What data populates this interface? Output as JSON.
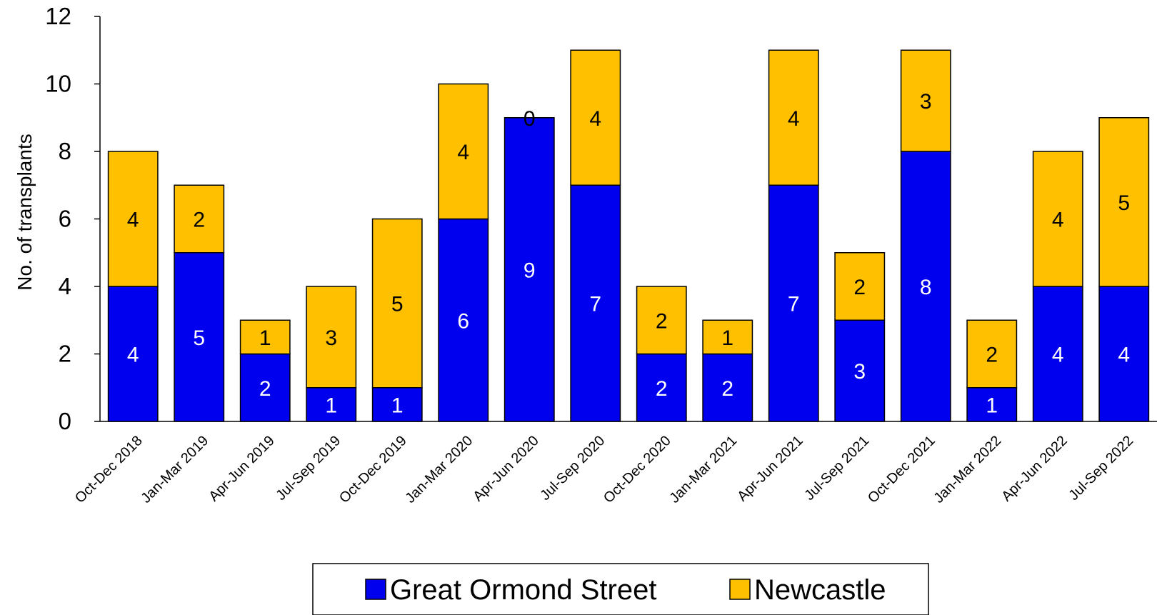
{
  "chart_data": {
    "type": "bar",
    "stacked": true,
    "title": "",
    "xlabel": "",
    "ylabel": "No. of transplants",
    "ylim": [
      0,
      12
    ],
    "yticks": [
      0,
      2,
      4,
      6,
      8,
      10,
      12
    ],
    "grid": false,
    "legend_position": "bottom",
    "categories": [
      "Oct-Dec 2018",
      "Jan-Mar 2019",
      "Apr-Jun 2019",
      "Jul-Sep 2019",
      "Oct-Dec 2019",
      "Jan-Mar 2020",
      "Apr-Jun 2020",
      "Jul-Sep 2020",
      "Oct-Dec 2020",
      "Jan-Mar 2021",
      "Apr-Jun 2021",
      "Jul-Sep 2021",
      "Oct-Dec 2021",
      "Jan-Mar 2022",
      "Apr-Jun 2022",
      "Jul-Sep 2022"
    ],
    "series": [
      {
        "name": "Great Ormond Street",
        "color": "#0000EE",
        "label_color": "#FFFFFF",
        "values": [
          4,
          5,
          2,
          1,
          1,
          6,
          9,
          7,
          2,
          2,
          7,
          3,
          8,
          1,
          4,
          4
        ]
      },
      {
        "name": "Newcastle",
        "color": "#FFC000",
        "label_color": "#000000",
        "values": [
          4,
          2,
          1,
          3,
          5,
          4,
          0,
          4,
          2,
          1,
          4,
          2,
          3,
          2,
          4,
          5
        ]
      }
    ]
  }
}
